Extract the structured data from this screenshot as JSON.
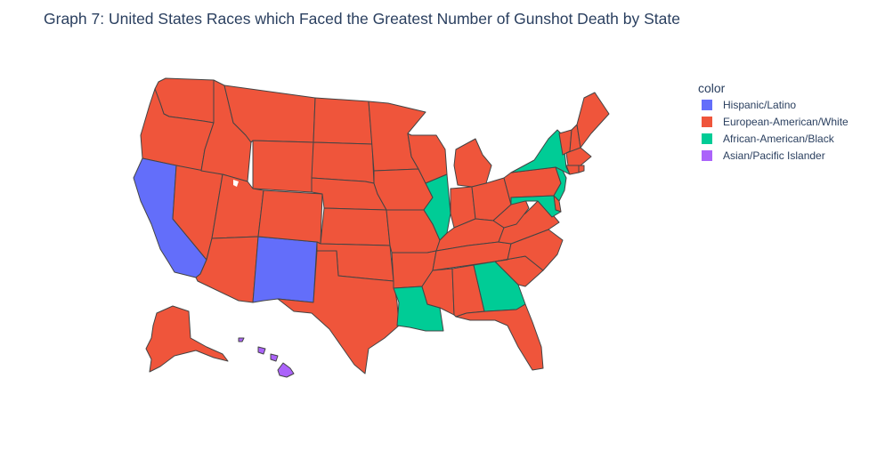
{
  "title": "Graph 7: United States Races which Faced the Greatest Number of Gunshot Death by State",
  "colors": {
    "hispanic": "#636efa",
    "white": "#ef553b",
    "black": "#00cc96",
    "asian": "#ab63fa"
  },
  "legend": {
    "title": "color",
    "items": [
      {
        "label": "Hispanic/Latino",
        "key": "hispanic"
      },
      {
        "label": "European-American/White",
        "key": "white"
      },
      {
        "label": "African-American/Black",
        "key": "black"
      },
      {
        "label": "Asian/Pacific Islander",
        "key": "asian"
      }
    ]
  },
  "map_data": {
    "type": "choropleth",
    "scope": "usa",
    "states": [
      {
        "state": "WA",
        "category": "white"
      },
      {
        "state": "OR",
        "category": "white"
      },
      {
        "state": "CA",
        "category": "hispanic"
      },
      {
        "state": "NV",
        "category": "white"
      },
      {
        "state": "ID",
        "category": "white"
      },
      {
        "state": "MT",
        "category": "white"
      },
      {
        "state": "WY",
        "category": "white"
      },
      {
        "state": "UT",
        "category": "white"
      },
      {
        "state": "AZ",
        "category": "white"
      },
      {
        "state": "NM",
        "category": "hispanic"
      },
      {
        "state": "CO",
        "category": "white"
      },
      {
        "state": "ND",
        "category": "white"
      },
      {
        "state": "SD",
        "category": "white"
      },
      {
        "state": "NE",
        "category": "white"
      },
      {
        "state": "KS",
        "category": "white"
      },
      {
        "state": "OK",
        "category": "white"
      },
      {
        "state": "TX",
        "category": "white"
      },
      {
        "state": "MN",
        "category": "white"
      },
      {
        "state": "IA",
        "category": "white"
      },
      {
        "state": "MO",
        "category": "white"
      },
      {
        "state": "AR",
        "category": "white"
      },
      {
        "state": "LA",
        "category": "black"
      },
      {
        "state": "WI",
        "category": "white"
      },
      {
        "state": "IL",
        "category": "black"
      },
      {
        "state": "MI",
        "category": "white"
      },
      {
        "state": "IN",
        "category": "white"
      },
      {
        "state": "OH",
        "category": "white"
      },
      {
        "state": "KY",
        "category": "white"
      },
      {
        "state": "TN",
        "category": "white"
      },
      {
        "state": "MS",
        "category": "white"
      },
      {
        "state": "AL",
        "category": "white"
      },
      {
        "state": "GA",
        "category": "black"
      },
      {
        "state": "FL",
        "category": "white"
      },
      {
        "state": "SC",
        "category": "white"
      },
      {
        "state": "NC",
        "category": "white"
      },
      {
        "state": "VA",
        "category": "white"
      },
      {
        "state": "WV",
        "category": "white"
      },
      {
        "state": "PA",
        "category": "white"
      },
      {
        "state": "NY",
        "category": "black"
      },
      {
        "state": "NJ",
        "category": "black"
      },
      {
        "state": "DE",
        "category": "white"
      },
      {
        "state": "MD",
        "category": "black"
      },
      {
        "state": "VT",
        "category": "white"
      },
      {
        "state": "NH",
        "category": "white"
      },
      {
        "state": "ME",
        "category": "white"
      },
      {
        "state": "MA",
        "category": "white"
      },
      {
        "state": "CT",
        "category": "white"
      },
      {
        "state": "RI",
        "category": "white"
      },
      {
        "state": "AK",
        "category": "white"
      },
      {
        "state": "HI",
        "category": "asian"
      }
    ]
  }
}
